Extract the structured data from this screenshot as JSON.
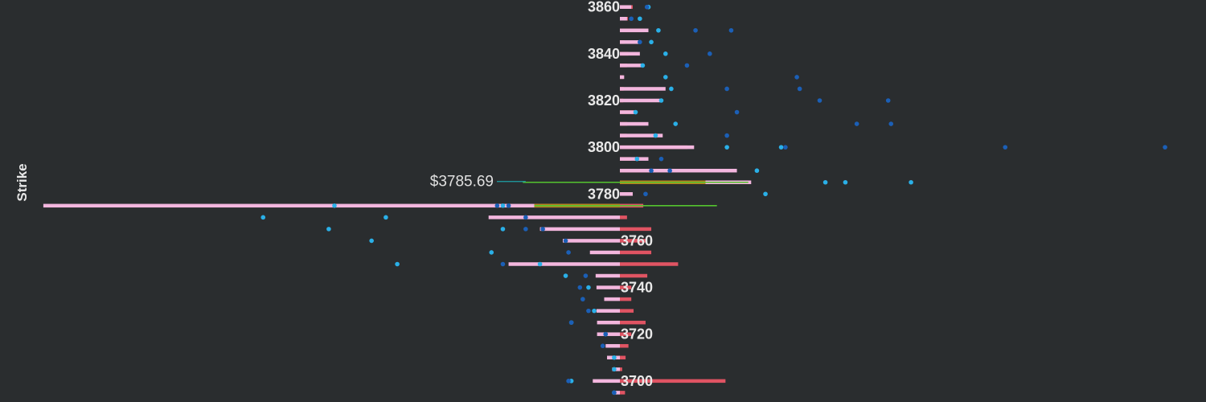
{
  "chart_data": {
    "type": "bar",
    "orientation": "horizontal",
    "ylabel": "Strike",
    "y_ticks": [
      3860,
      3840,
      3820,
      3800,
      3780,
      3760,
      3740,
      3720,
      3700
    ],
    "ylim": [
      3691,
      3863
    ],
    "xlim": [
      -1,
      1
    ],
    "spot_label": "$3785.69",
    "spot_value": 3785.69,
    "green_line_strikes": [
      3785,
      3775
    ],
    "colors": {
      "background": "#2a2d2f",
      "red_bar": "#e05463",
      "pink_bar": "#f3b6de",
      "orange_bar": "#b8821c",
      "green_line": "#54c42f",
      "teal_line": "#1ea1a8",
      "dot_light": "#2ab0e8",
      "dot_dark": "#1b5fb6"
    },
    "strikes": [
      3860,
      3855,
      3850,
      3845,
      3840,
      3835,
      3830,
      3825,
      3820,
      3815,
      3810,
      3805,
      3800,
      3795,
      3790,
      3785,
      3780,
      3775,
      3770,
      3765,
      3760,
      3755,
      3750,
      3745,
      3740,
      3735,
      3730,
      3725,
      3720,
      3715,
      3710,
      3705,
      3700,
      3695
    ],
    "red_values": [
      0.045,
      0.028,
      0.085,
      0.016,
      0.03,
      0.025,
      0.012,
      0.013,
      0.012,
      0.047,
      0.026,
      0.024,
      0.237,
      0.04,
      0.12,
      0.05,
      0.04,
      0.082,
      0.025,
      0.11,
      0.09,
      0.11,
      0.204,
      0.096,
      0.04,
      0.04,
      0.048,
      0.09,
      0.04,
      0.03,
      0.02,
      0.008,
      0.37,
      0.018
    ],
    "pink_values": [
      0.04,
      0.025,
      0.1,
      0.065,
      0.07,
      0.08,
      0.015,
      0.16,
      0.14,
      0.055,
      0.1,
      0.15,
      0.26,
      0.1,
      0.41,
      0.46,
      0.045,
      -2.02,
      -0.46,
      -0.28,
      -0.2,
      -0.105,
      -0.39,
      -0.085,
      -0.082,
      -0.055,
      -0.082,
      -0.08,
      -0.08,
      -0.05,
      -0.045,
      -0.027,
      -0.095,
      -0.018
    ],
    "orange_values": [
      0,
      0,
      0,
      0,
      0,
      0,
      0,
      0,
      0,
      0,
      0,
      0,
      0,
      0,
      0,
      0.3,
      0,
      -0.3,
      0,
      0,
      0,
      0,
      0,
      0,
      0,
      0,
      0,
      0,
      0,
      0,
      0,
      0,
      0,
      0
    ],
    "dots_light": [
      [
        3860,
        0.1
      ],
      [
        3855,
        0.07
      ],
      [
        3850,
        0.135
      ],
      [
        3845,
        0.11
      ],
      [
        3840,
        0.16
      ],
      [
        3835,
        0.08
      ],
      [
        3830,
        0.16
      ],
      [
        3825,
        0.18
      ],
      [
        3820,
        0.145
      ],
      [
        3815,
        0.055
      ],
      [
        3810,
        0.195
      ],
      [
        3805,
        0.125
      ],
      [
        3800,
        0.375
      ],
      [
        3800,
        0.565
      ],
      [
        3795,
        0.06
      ],
      [
        3790,
        0.48
      ],
      [
        3785,
        0.72
      ],
      [
        3785,
        0.79
      ],
      [
        3785,
        1.02
      ],
      [
        3780,
        0.51
      ],
      [
        3775,
        -1.0
      ],
      [
        3775,
        -0.41
      ],
      [
        3770,
        -1.25
      ],
      [
        3770,
        -0.82
      ],
      [
        3765,
        -1.02
      ],
      [
        3765,
        -0.41
      ],
      [
        3760,
        -0.87
      ],
      [
        3755,
        -0.45
      ],
      [
        3750,
        -0.78
      ],
      [
        3750,
        -0.28
      ],
      [
        3745,
        -0.19
      ],
      [
        3740,
        -0.11
      ],
      [
        3730,
        -0.09
      ],
      [
        3725,
        -0.17
      ],
      [
        3720,
        -0.05
      ],
      [
        3710,
        -0.02
      ],
      [
        3705,
        -0.02
      ],
      [
        3700,
        -0.17
      ],
      [
        3695,
        -0.02
      ]
    ],
    "dots_dark": [
      [
        3860,
        0.095
      ],
      [
        3855,
        0.04
      ],
      [
        3850,
        0.265
      ],
      [
        3850,
        0.39
      ],
      [
        3845,
        0.07
      ],
      [
        3840,
        0.315
      ],
      [
        3835,
        0.235
      ],
      [
        3830,
        0.62
      ],
      [
        3825,
        0.63
      ],
      [
        3825,
        0.375
      ],
      [
        3820,
        0.7
      ],
      [
        3820,
        0.94
      ],
      [
        3815,
        0.41
      ],
      [
        3810,
        0.83
      ],
      [
        3810,
        0.95
      ],
      [
        3805,
        0.375
      ],
      [
        3800,
        0.58
      ],
      [
        3800,
        1.35
      ],
      [
        3800,
        1.91
      ],
      [
        3795,
        0.145
      ],
      [
        3790,
        0.175
      ],
      [
        3790,
        0.11
      ],
      [
        3780,
        0.09
      ],
      [
        3775,
        -0.43
      ],
      [
        3775,
        -0.39
      ],
      [
        3770,
        -0.33
      ],
      [
        3765,
        -0.33
      ],
      [
        3765,
        -0.27
      ],
      [
        3760,
        -0.19
      ],
      [
        3755,
        -0.18
      ],
      [
        3750,
        -0.41
      ],
      [
        3745,
        -0.12
      ],
      [
        3740,
        -0.14
      ],
      [
        3735,
        -0.13
      ],
      [
        3730,
        -0.11
      ],
      [
        3725,
        -0.17
      ],
      [
        3720,
        -0.05
      ],
      [
        3715,
        -0.06
      ],
      [
        3700,
        -0.18
      ],
      [
        3695,
        -0.02
      ]
    ]
  }
}
